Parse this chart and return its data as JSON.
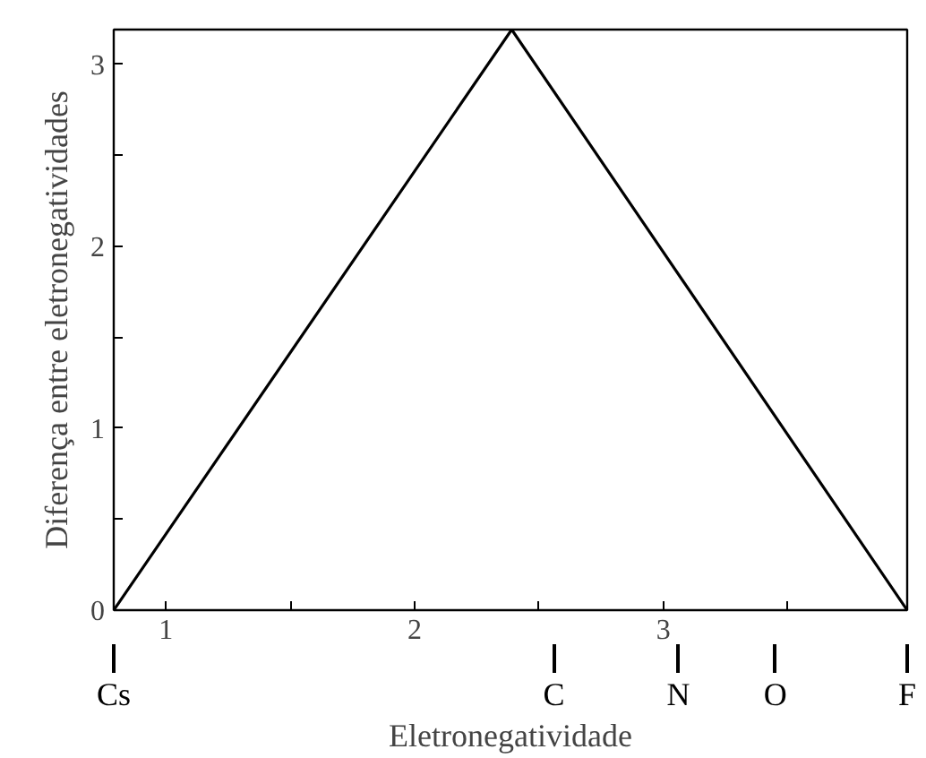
{
  "chart_data": {
    "type": "line",
    "xlabel": "Eletronegatividade",
    "ylabel": "Diferença entre eletronegatividades",
    "x": [
      0.79,
      2.39,
      3.98
    ],
    "series": [
      {
        "color": "#000000",
        "values": [
          0,
          3.19,
          0
        ]
      }
    ],
    "xlim": [
      0.79,
      3.98
    ],
    "ylim": [
      0,
      3.19
    ],
    "xticks": [
      1,
      {
        "value": 1.5,
        "label": null
      },
      2,
      {
        "value": 2.5,
        "label": null
      },
      3,
      {
        "value": 3.5,
        "label": null
      }
    ],
    "ref_lines": [
      {
        "axis": "x",
        "value": 0.79,
        "label": "Cs"
      },
      {
        "axis": "x",
        "value": 2.56,
        "label": "C"
      },
      {
        "axis": "x",
        "value": 3.06,
        "label": "N"
      },
      {
        "axis": "x",
        "value": 3.45,
        "label": "O"
      },
      {
        "axis": "x",
        "value": 3.98,
        "label": "F"
      }
    ],
    "yticks": [
      0,
      {
        "value": 0.5,
        "label": null
      },
      1,
      {
        "value": 1.5,
        "label": null
      },
      2,
      {
        "value": 2.5,
        "label": null
      },
      3
    ],
    "grid": false,
    "marker": "none",
    "line_style": "solid"
  }
}
